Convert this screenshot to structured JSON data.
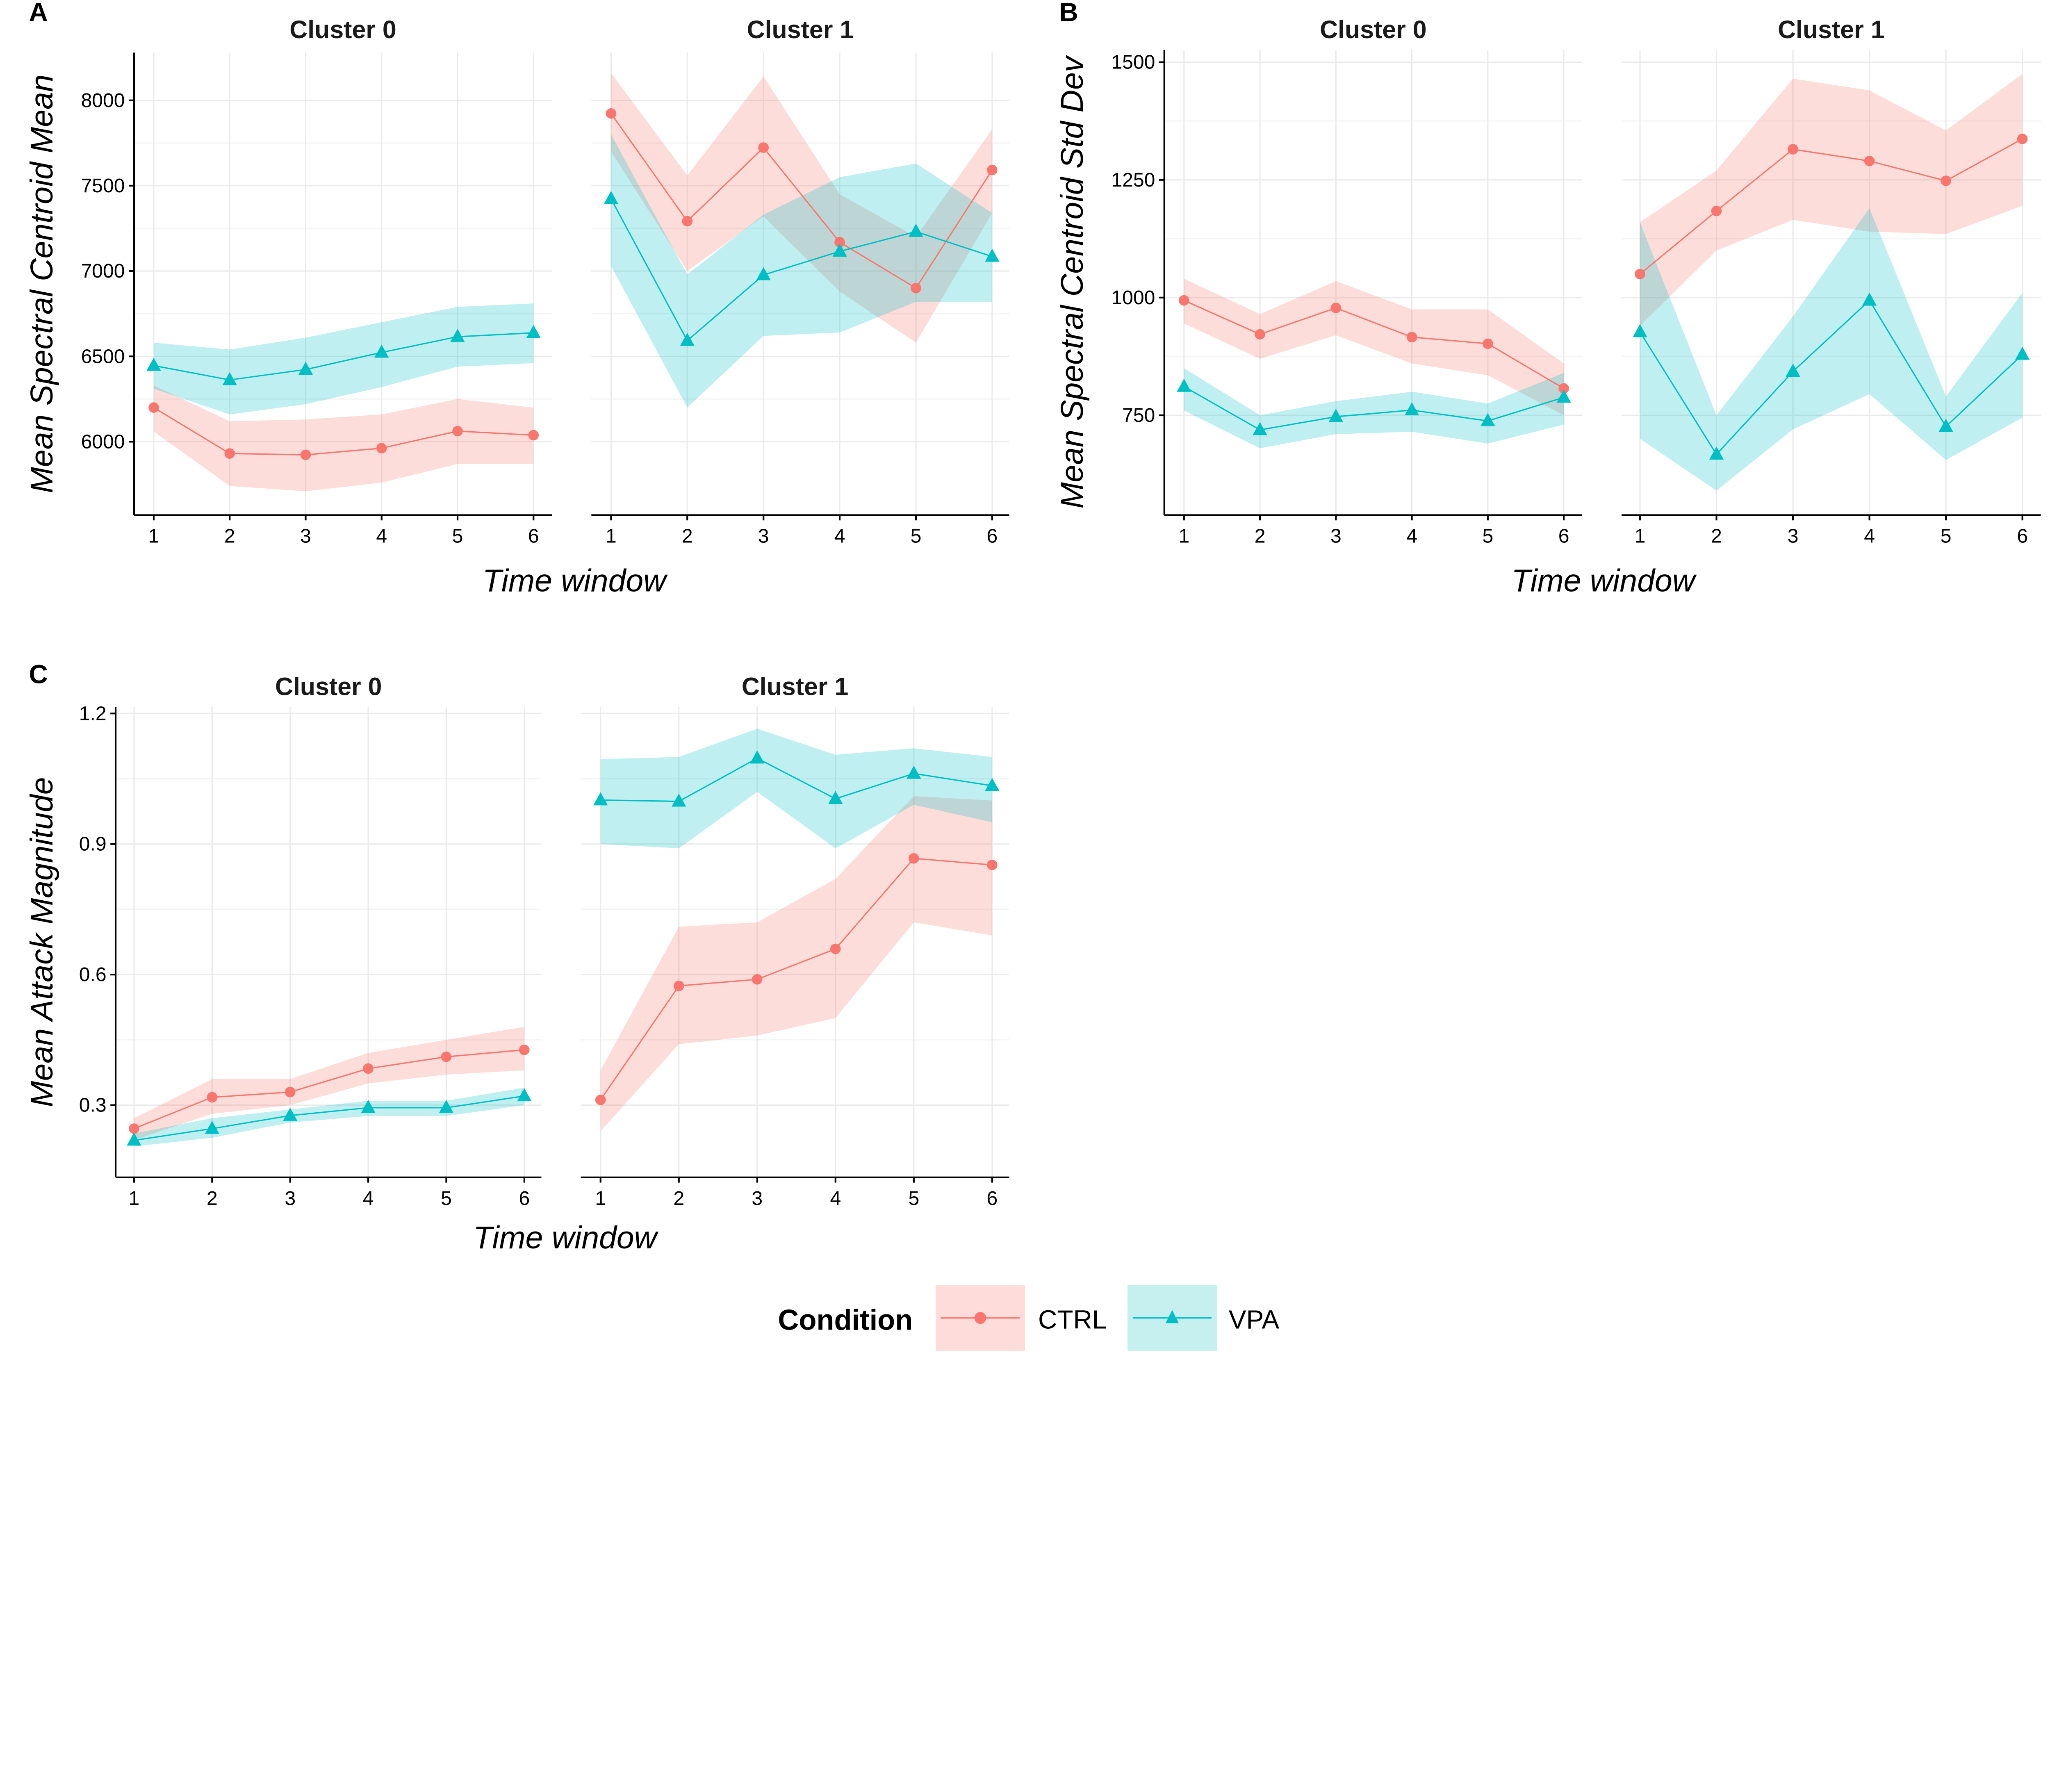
{
  "legend": {
    "title": "Condition",
    "entries": [
      {
        "label": "CTRL",
        "color": "#F8766D",
        "ribbon": "#FDDCDA",
        "marker": "circle"
      },
      {
        "label": "VPA",
        "color": "#00BFC4",
        "ribbon": "#C6EFF0",
        "marker": "triangle"
      }
    ]
  },
  "chart_data": [
    {
      "type": "line",
      "panel_label": "A",
      "ylabel": "Mean Spectral Centroid Mean",
      "xlabel": "Time window",
      "ylim": [
        5570,
        8280
      ],
      "yticks": [
        6000,
        6500,
        7000,
        7500,
        8000
      ],
      "xticks": [
        1,
        2,
        3,
        4,
        5,
        6
      ],
      "grid": true,
      "facets": [
        {
          "title": "Cluster 0",
          "series": [
            {
              "name": "CTRL",
              "y": [
                6200,
                5931,
                5923,
                5962,
                6062,
                6038
              ],
              "lower": [
                6060,
                5740,
                5710,
                5760,
                5870,
                5870
              ],
              "upper": [
                6330,
                6120,
                6130,
                6160,
                6250,
                6200
              ]
            },
            {
              "name": "VPA",
              "y": [
                6446,
                6362,
                6423,
                6523,
                6615,
                6638
              ],
              "lower": [
                6310,
                6160,
                6220,
                6320,
                6440,
                6460
              ],
              "upper": [
                6580,
                6540,
                6610,
                6700,
                6790,
                6810
              ]
            }
          ]
        },
        {
          "title": "Cluster 1",
          "series": [
            {
              "name": "CTRL",
              "y": [
                7923,
                7292,
                7723,
                7169,
                6900,
                7592
              ],
              "lower": [
                7700,
                7000,
                7320,
                6880,
                6580,
                7340
              ],
              "upper": [
                8160,
                7560,
                8140,
                7450,
                7200,
                7830
              ]
            },
            {
              "name": "VPA",
              "y": [
                7423,
                6592,
                6977,
                7115,
                7231,
                7085
              ],
              "lower": [
                7030,
                6200,
                6620,
                6640,
                6820,
                6820
              ],
              "upper": [
                7800,
                6980,
                7330,
                7550,
                7630,
                7340
              ]
            }
          ]
        }
      ]
    },
    {
      "type": "line",
      "panel_label": "B",
      "ylabel": "Mean Spectral Centroid Std Dev",
      "xlabel": "Time window",
      "ylim": [
        538,
        1526
      ],
      "yticks": [
        750,
        1000,
        1250,
        1500
      ],
      "xticks": [
        1,
        2,
        3,
        4,
        5,
        6
      ],
      "grid": true,
      "facets": [
        {
          "title": "Cluster 0",
          "series": [
            {
              "name": "CTRL",
              "y": [
                994,
                922,
                978,
                916,
                902,
                807
              ],
              "lower": [
                945,
                870,
                920,
                860,
                835,
                750
              ],
              "upper": [
                1040,
                965,
                1035,
                975,
                975,
                860
              ]
            },
            {
              "name": "VPA",
              "y": [
                811,
                719,
                747,
                761,
                738,
                788
              ],
              "lower": [
                760,
                680,
                710,
                715,
                690,
                730
              ],
              "upper": [
                850,
                750,
                780,
                800,
                775,
                840
              ]
            }
          ]
        },
        {
          "title": "Cluster 1",
          "series": [
            {
              "name": "CTRL",
              "y": [
                1050,
                1184,
                1315,
                1290,
                1248,
                1337
              ],
              "lower": [
                940,
                1100,
                1165,
                1140,
                1135,
                1195
              ],
              "upper": [
                1160,
                1270,
                1465,
                1440,
                1355,
                1475
              ]
            },
            {
              "name": "VPA",
              "y": [
                927,
                667,
                843,
                994,
                726,
                879
              ],
              "lower": [
                700,
                590,
                720,
                795,
                655,
                745
              ],
              "upper": [
                1160,
                750,
                960,
                1190,
                790,
                1010
              ]
            }
          ]
        }
      ]
    },
    {
      "type": "line",
      "panel_label": "C",
      "ylabel": "Mean Attack Magnitude",
      "xlabel": "Time window",
      "ylim": [
        0.134,
        1.215
      ],
      "yticks": [
        0.3,
        0.6,
        0.9,
        1.2
      ],
      "xticks": [
        1,
        2,
        3,
        4,
        5,
        6
      ],
      "grid": true,
      "facets": [
        {
          "title": "Cluster 0",
          "series": [
            {
              "name": "CTRL",
              "y": [
                0.246,
                0.318,
                0.33,
                0.384,
                0.411,
                0.427
              ],
              "lower": [
                0.22,
                0.28,
                0.3,
                0.35,
                0.37,
                0.38
              ],
              "upper": [
                0.27,
                0.36,
                0.36,
                0.42,
                0.45,
                0.48
              ]
            },
            {
              "name": "VPA",
              "y": [
                0.219,
                0.246,
                0.276,
                0.294,
                0.294,
                0.321
              ],
              "lower": [
                0.205,
                0.225,
                0.26,
                0.275,
                0.275,
                0.3
              ],
              "upper": [
                0.235,
                0.27,
                0.29,
                0.31,
                0.31,
                0.34
              ]
            }
          ]
        },
        {
          "title": "Cluster 1",
          "series": [
            {
              "name": "CTRL",
              "y": [
                0.312,
                0.574,
                0.589,
                0.659,
                0.867,
                0.852
              ],
              "lower": [
                0.24,
                0.44,
                0.46,
                0.5,
                0.72,
                0.69
              ],
              "upper": [
                0.38,
                0.71,
                0.72,
                0.82,
                1.01,
                1.0
              ]
            },
            {
              "name": "VPA",
              "y": [
                1.001,
                0.998,
                1.097,
                1.004,
                1.062,
                1.034
              ],
              "lower": [
                0.9,
                0.89,
                1.02,
                0.89,
                0.99,
                0.95
              ],
              "upper": [
                1.095,
                1.1,
                1.165,
                1.105,
                1.12,
                1.1
              ]
            }
          ]
        }
      ]
    }
  ]
}
